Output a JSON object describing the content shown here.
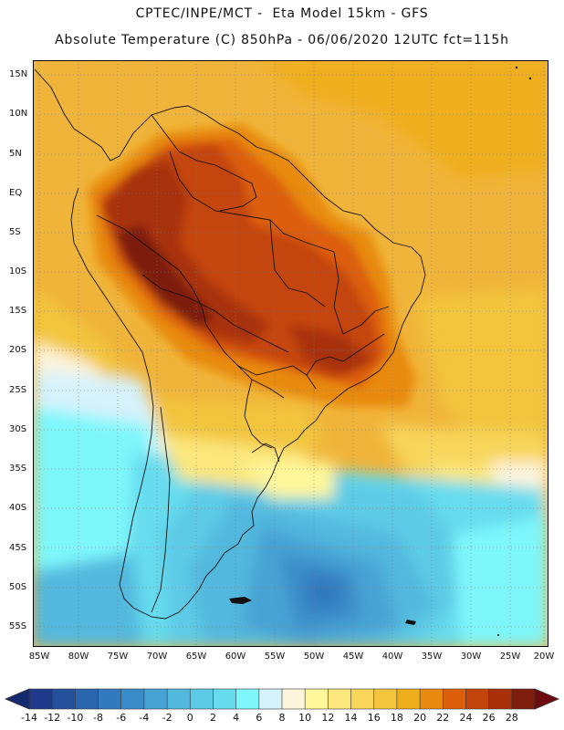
{
  "titles": {
    "line1": "CPTEC/INPE/MCT -  Eta Model 15km - GFS",
    "line2": "Absolute Temperature (C) 850hPa - 06/06/2020 12UTC fct=115h"
  },
  "map": {
    "lat_labels": [
      "15N",
      "10N",
      "5N",
      "EQ",
      "5S",
      "10S",
      "15S",
      "20S",
      "25S",
      "30S",
      "35S",
      "40S",
      "45S",
      "50S",
      "55S"
    ],
    "lon_labels": [
      "85W",
      "80W",
      "75W",
      "70W",
      "65W",
      "60W",
      "55W",
      "50W",
      "45W",
      "40W",
      "35W",
      "30W",
      "25W",
      "20W"
    ],
    "gridlines": "dotted",
    "region": "South America"
  },
  "colorbar": {
    "labels": [
      "-14",
      "-12",
      "-10",
      "-8",
      "-6",
      "-4",
      "-2",
      "0",
      "2",
      "4",
      "6",
      "8",
      "10",
      "12",
      "14",
      "16",
      "18",
      "20",
      "22",
      "24",
      "26",
      "28"
    ],
    "colors": [
      "#1f3a8a",
      "#24509c",
      "#2a66ad",
      "#3279bd",
      "#3a8cc9",
      "#46a3d4",
      "#52b8de",
      "#5dcbe6",
      "#66dcee",
      "#7ef7fb",
      "#d6f2fb",
      "#fdf4dc",
      "#fff79a",
      "#fbe77c",
      "#f7d65a",
      "#f2c53d",
      "#efae1b",
      "#e88a10",
      "#dd5f0c",
      "#c4450b",
      "#a8300a",
      "#7d1d0b"
    ],
    "under_color": "#152a6e",
    "over_color": "#6e0b10"
  }
}
